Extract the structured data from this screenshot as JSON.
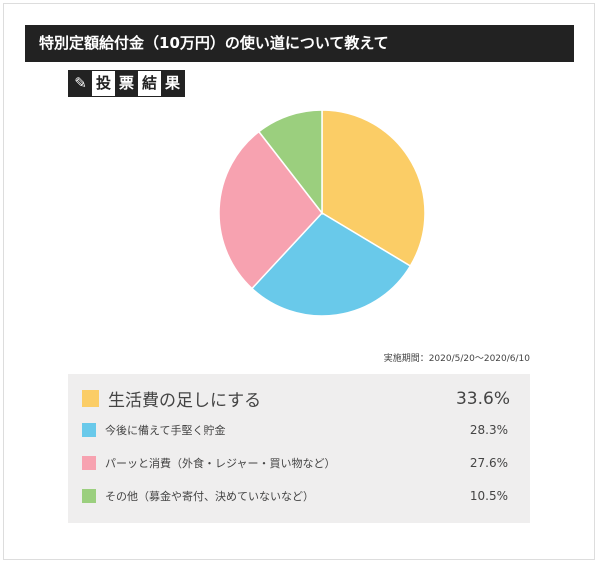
{
  "title": "特別定額給付金（10万円）の使い道について教えて",
  "badge": {
    "icon": "pencil-icon",
    "chars": [
      "投",
      "票",
      "結",
      "果"
    ]
  },
  "period": "実施期間：2020/5/20〜2020/6/10",
  "chart_data": {
    "type": "pie",
    "categories": [
      "生活費の足しにする",
      "今後に備えて手堅く貯金",
      "パーッと消費（外食・レジャー・買い物など）",
      "その他（募金や寄付、決めていないなど）"
    ],
    "values": [
      33.6,
      28.3,
      27.6,
      10.5
    ],
    "labels": [
      "33.6%",
      "28.3%",
      "27.6%",
      "10.5%"
    ],
    "colors": [
      "#fbcd66",
      "#69c9ea",
      "#f7a2b0",
      "#9bcf7e"
    ],
    "start": "12 o'clock",
    "direction": "clockwise"
  }
}
